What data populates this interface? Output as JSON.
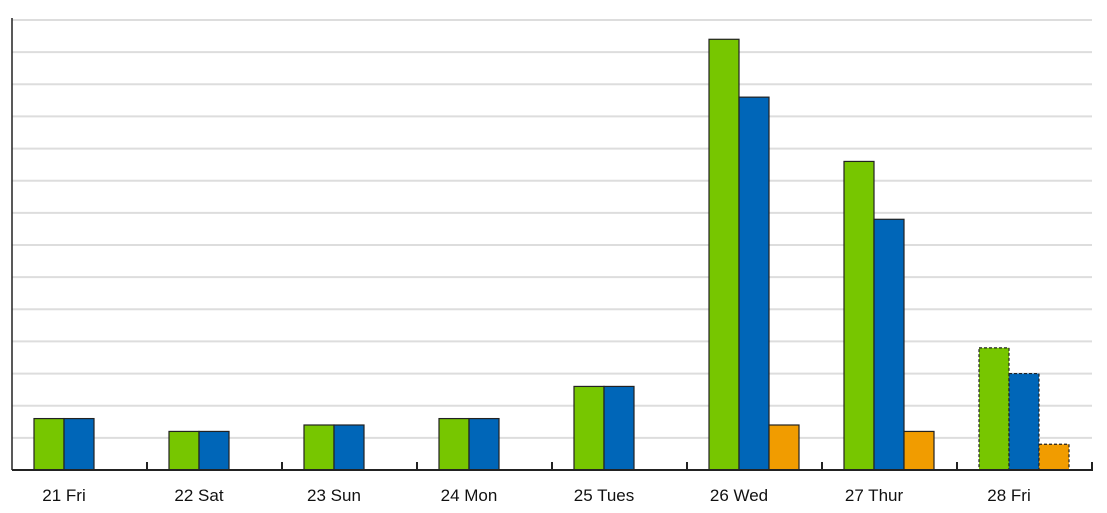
{
  "chart_data": {
    "type": "bar",
    "categories": [
      "21 Fri",
      "22 Sat",
      "23 Sun",
      "24 Mon",
      "25 Tues",
      "26 Wed",
      "27 Thur",
      "28 Fri"
    ],
    "series": [
      {
        "color": "#77c600",
        "values": [
          1.6,
          1.2,
          1.4,
          1.6,
          2.6,
          13.4,
          9.6,
          3.8
        ]
      },
      {
        "color": "#0066b8",
        "values": [
          1.6,
          1.2,
          1.4,
          1.6,
          2.6,
          11.6,
          7.8,
          3.0
        ]
      },
      {
        "color": "#f19c00",
        "values": [
          0,
          0,
          0,
          0,
          0,
          1.4,
          1.2,
          0.8
        ]
      }
    ],
    "partial_category": "28 Fri",
    "ylim": [
      0,
      14
    ],
    "y_gridline_step": 1,
    "grid": true,
    "y_tick_labels_shown": false,
    "legend": "none"
  }
}
